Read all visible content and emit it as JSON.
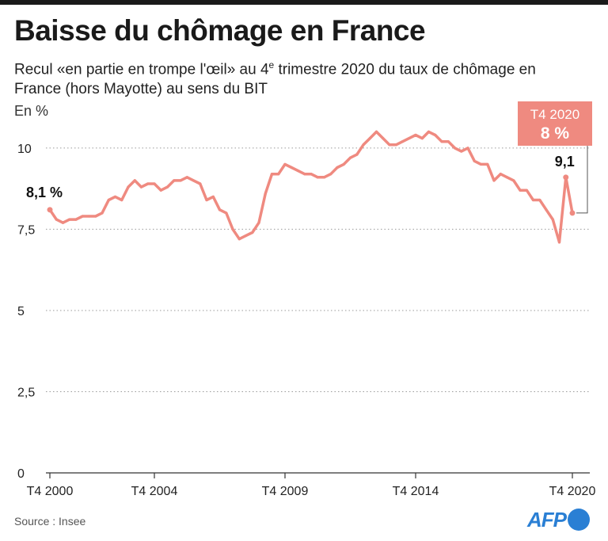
{
  "title": "Baisse du chômage en France",
  "subtitle": {
    "before": "Recul «en partie en trompe l'œil» au 4",
    "sup": "e",
    "after": " trimestre 2020 du taux de chômage en France  (hors Mayotte) au sens du BIT"
  },
  "unit_label": "En %",
  "source": "Source : Insee",
  "brand": "AFP",
  "colors": {
    "line": "#ef8a80",
    "callout_bg": "#ef8a80",
    "callout_text": "#ffffff",
    "brand": "#2a7fd4"
  },
  "chart_data": {
    "type": "line",
    "title": "Baisse du chômage en France",
    "ylabel": "En %",
    "ylim": [
      0,
      10.9
    ],
    "yticks": [
      0,
      2.5,
      5,
      7.5,
      10
    ],
    "ytick_labels": [
      "0",
      "2,5",
      "5",
      "7,5",
      "10"
    ],
    "xticks": [
      "T4 2000",
      "T4 2004",
      "T4 2009",
      "T4 2014",
      "T4 2020"
    ],
    "grid": true,
    "series": [
      {
        "quarters": [
          "T4 2000",
          "T1 2001",
          "T2 2001",
          "T3 2001",
          "T4 2001",
          "T1 2002",
          "T2 2002",
          "T3 2002",
          "T4 2002",
          "T1 2003",
          "T2 2003",
          "T3 2003",
          "T4 2003",
          "T1 2004",
          "T2 2004",
          "T3 2004",
          "T4 2004",
          "T1 2005",
          "T2 2005",
          "T3 2005",
          "T4 2005",
          "T1 2006",
          "T2 2006",
          "T3 2006",
          "T4 2006",
          "T1 2007",
          "T2 2007",
          "T3 2007",
          "T4 2007",
          "T1 2008",
          "T2 2008",
          "T3 2008",
          "T4 2008",
          "T1 2009",
          "T2 2009",
          "T3 2009",
          "T4 2009",
          "T1 2010",
          "T2 2010",
          "T3 2010",
          "T4 2010",
          "T1 2011",
          "T2 2011",
          "T3 2011",
          "T4 2011",
          "T1 2012",
          "T2 2012",
          "T3 2012",
          "T4 2012",
          "T1 2013",
          "T2 2013",
          "T3 2013",
          "T4 2013",
          "T1 2014",
          "T2 2014",
          "T3 2014",
          "T4 2014",
          "T1 2015",
          "T2 2015",
          "T3 2015",
          "T4 2015",
          "T1 2016",
          "T2 2016",
          "T3 2016",
          "T4 2016",
          "T1 2017",
          "T2 2017",
          "T3 2017",
          "T4 2017",
          "T1 2018",
          "T2 2018",
          "T3 2018",
          "T4 2018",
          "T1 2019",
          "T2 2019",
          "T3 2019",
          "T4 2019",
          "T1 2020",
          "T2 2020",
          "T3 2020",
          "T4 2020"
        ],
        "values": [
          8.1,
          7.8,
          7.7,
          7.8,
          7.8,
          7.9,
          7.9,
          7.9,
          8.0,
          8.4,
          8.5,
          8.4,
          8.8,
          9.0,
          8.8,
          8.9,
          8.9,
          8.7,
          8.8,
          9.0,
          9.0,
          9.1,
          9.0,
          8.9,
          8.4,
          8.5,
          8.1,
          8.0,
          7.5,
          7.2,
          7.3,
          7.4,
          7.7,
          8.6,
          9.2,
          9.2,
          9.5,
          9.4,
          9.3,
          9.2,
          9.2,
          9.1,
          9.1,
          9.2,
          9.4,
          9.5,
          9.7,
          9.8,
          10.1,
          10.3,
          10.5,
          10.3,
          10.1,
          10.1,
          10.2,
          10.3,
          10.4,
          10.3,
          10.5,
          10.4,
          10.2,
          10.2,
          10.0,
          9.9,
          10.0,
          9.6,
          9.5,
          9.5,
          9.0,
          9.2,
          9.1,
          9.0,
          8.7,
          8.7,
          8.4,
          8.4,
          8.1,
          7.8,
          7.1,
          9.1,
          8.0
        ]
      }
    ],
    "annotations": {
      "start": "8,1 %",
      "peak_t3_2020": "9,1",
      "callout_period": "T4 2020",
      "callout_value": "8 %"
    }
  }
}
